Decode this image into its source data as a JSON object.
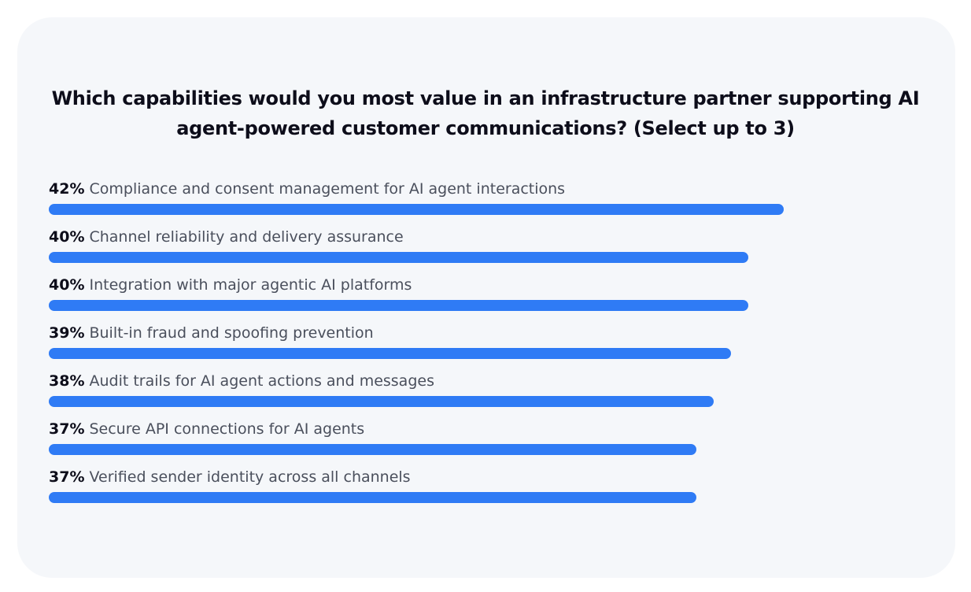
{
  "card": {
    "title_line1": "Which capabilities would you most value in an infrastructure partner supporting AI",
    "title_line2": "agent-powered customer communications? (Select up to 3)"
  },
  "colors": {
    "bar": "#2f7bf5",
    "card_background": "#f5f7fa"
  },
  "chart_data": {
    "type": "bar",
    "orientation": "horizontal",
    "title": "Which capabilities would you most value in an infrastructure partner supporting AI agent-powered customer communications? (Select up to 3)",
    "unit": "%",
    "xlim": [
      0,
      47
    ],
    "grid": false,
    "legend": "none",
    "categories": [
      "Compliance and consent management for AI agent interactions",
      "Channel reliability and delivery assurance",
      "Integration with major agentic AI platforms",
      "Built-in fraud and spoofing prevention",
      "Audit trails for AI agent actions and messages",
      "Secure API connections for AI agents",
      "Verified sender identity across all channels"
    ],
    "values": [
      42,
      40,
      40,
      39,
      38,
      37,
      37
    ],
    "value_labels": [
      "42%",
      "40%",
      "40%",
      "39%",
      "38%",
      "37%",
      "37%"
    ]
  }
}
